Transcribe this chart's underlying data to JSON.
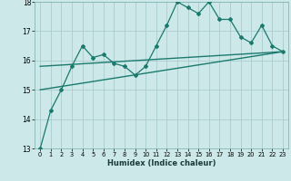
{
  "title": "",
  "xlabel": "Humidex (Indice chaleur)",
  "ylabel": "",
  "xlim": [
    -0.5,
    23.5
  ],
  "ylim": [
    13,
    18
  ],
  "xticks": [
    0,
    1,
    2,
    3,
    4,
    5,
    6,
    7,
    8,
    9,
    10,
    11,
    12,
    13,
    14,
    15,
    16,
    17,
    18,
    19,
    20,
    21,
    22,
    23
  ],
  "yticks": [
    13,
    14,
    15,
    16,
    17,
    18
  ],
  "bg_color": "#cce8e8",
  "grid_color": "#aacccc",
  "line_color": "#1a7a6e",
  "line1_x": [
    0,
    1,
    2,
    3,
    4,
    5,
    6,
    7,
    8,
    9,
    10,
    11,
    12,
    13,
    14,
    15,
    16,
    17,
    18,
    19,
    20,
    21,
    22,
    23
  ],
  "line1_y": [
    13.0,
    14.3,
    15.0,
    15.8,
    16.5,
    16.1,
    16.2,
    15.9,
    15.8,
    15.5,
    15.8,
    16.5,
    17.2,
    18.0,
    17.8,
    17.6,
    18.0,
    17.4,
    17.4,
    16.8,
    16.6,
    17.2,
    16.5,
    16.3
  ],
  "line2_x": [
    0,
    23
  ],
  "line2_y": [
    15.0,
    16.3
  ],
  "line3_x": [
    0,
    23
  ],
  "line3_y": [
    15.8,
    16.3
  ],
  "figwidth": 3.2,
  "figheight": 2.0,
  "dpi": 100
}
